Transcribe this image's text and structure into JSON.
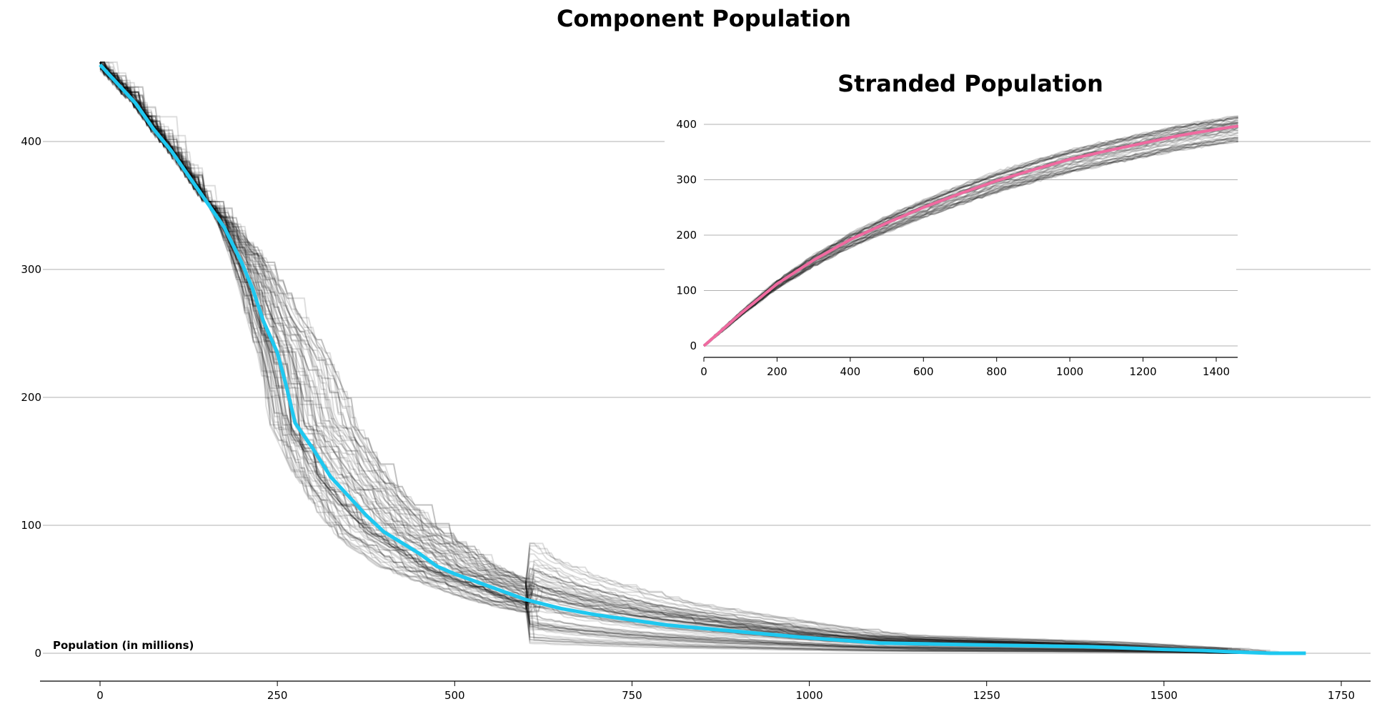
{
  "chart_data": [
    {
      "type": "line",
      "title": "Component Population",
      "xlabel": "",
      "ylabel": "Population (in millions)",
      "xlim": [
        -85,
        1790
      ],
      "ylim": [
        -22,
        465
      ],
      "xticks": [
        0,
        250,
        500,
        750,
        1000,
        1250,
        1500,
        1750
      ],
      "yticks": [
        0,
        100,
        200,
        300,
        400
      ],
      "grid": "horizontal",
      "colors": {
        "highlight": "#1ec8f0",
        "ensemble": "#000000",
        "grid": "#b0b0b0"
      },
      "ensemble_runs": 80,
      "series": [
        {
          "role": "highlight",
          "x": [
            0,
            25,
            50,
            75,
            100,
            125,
            150,
            175,
            200,
            215,
            230,
            250,
            262,
            275,
            300,
            325,
            350,
            375,
            400,
            450,
            475,
            500,
            550,
            600,
            650,
            700,
            750,
            800,
            900,
            1000,
            1100,
            1200,
            1300,
            1400,
            1500,
            1560,
            1600,
            1650,
            1700
          ],
          "y": [
            460,
            445,
            430,
            410,
            393,
            373,
            353,
            333,
            305,
            285,
            260,
            235,
            210,
            180,
            160,
            138,
            123,
            108,
            95,
            78,
            68,
            62,
            52,
            42,
            35,
            30,
            26,
            22,
            17,
            12,
            8,
            7,
            6,
            5,
            3,
            2,
            1,
            0,
            0
          ]
        }
      ]
    },
    {
      "type": "line",
      "title": "Stranded Population",
      "xlim": [
        0,
        1460
      ],
      "ylim": [
        -22,
        410
      ],
      "xticks": [
        0,
        200,
        400,
        600,
        800,
        1000,
        1200,
        1400
      ],
      "yticks": [
        0,
        100,
        200,
        300,
        400
      ],
      "grid": "horizontal",
      "colors": {
        "highlight": "#f06aa0",
        "ensemble": "#000000",
        "grid": "#b0b0b0"
      },
      "ensemble_runs": 40,
      "series": [
        {
          "role": "highlight",
          "x": [
            0,
            100,
            200,
            300,
            400,
            500,
            600,
            700,
            800,
            900,
            1000,
            1100,
            1200,
            1300,
            1400,
            1460
          ],
          "y": [
            0,
            58,
            112,
            155,
            192,
            222,
            250,
            275,
            298,
            318,
            337,
            352,
            366,
            380,
            391,
            397
          ]
        }
      ]
    }
  ]
}
